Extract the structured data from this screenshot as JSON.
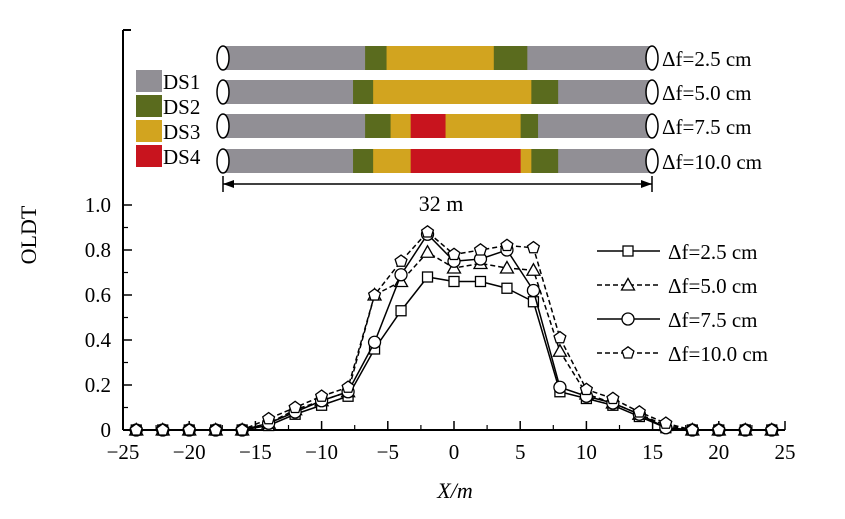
{
  "chart_data": {
    "type": "line",
    "xlabel": "X/m",
    "ylabel": "OLDT",
    "xlim": [
      -25,
      25
    ],
    "ylim": [
      0,
      1.0
    ],
    "xticks": [
      -25,
      -20,
      -15,
      -10,
      -5,
      0,
      5,
      10,
      15,
      20,
      25
    ],
    "yticks": [
      0,
      0.2,
      0.4,
      0.6,
      0.8,
      1.0
    ],
    "xtick_labels": [
      "−25",
      "−20",
      "−15",
      "−10",
      "−5",
      "0",
      "5",
      "10",
      "15",
      "20",
      "25"
    ],
    "ytick_labels": [
      "0",
      "0.2",
      "0.4",
      "0.6",
      "0.8",
      "1.0"
    ],
    "grid": false,
    "legend_position": "right",
    "x": [
      -24,
      -22,
      -20,
      -18,
      -16,
      -14,
      -12,
      -10,
      -8,
      -6,
      -4,
      -2,
      0,
      2,
      4,
      6,
      8,
      10,
      12,
      14,
      16,
      18,
      20,
      22,
      24
    ],
    "series": [
      {
        "name": "Δf=2.5 cm",
        "marker": "square",
        "dash": "solid",
        "values": [
          0.0,
          0.0,
          0.0,
          0.0,
          0.0,
          0.02,
          0.07,
          0.11,
          0.15,
          0.36,
          0.53,
          0.68,
          0.66,
          0.66,
          0.63,
          0.57,
          0.17,
          0.14,
          0.11,
          0.06,
          0.01,
          0.0,
          0.0,
          0.0,
          0.0
        ]
      },
      {
        "name": "Δf=5.0 cm",
        "marker": "triangle",
        "dash": "dashed",
        "values": [
          0.0,
          0.0,
          0.0,
          0.0,
          0.0,
          0.03,
          0.09,
          0.13,
          0.17,
          0.6,
          0.66,
          0.79,
          0.72,
          0.74,
          0.72,
          0.71,
          0.35,
          0.16,
          0.12,
          0.07,
          0.02,
          0.0,
          0.0,
          0.0,
          0.0
        ]
      },
      {
        "name": "Δf=7.5 cm",
        "marker": "circle",
        "dash": "solid",
        "values": [
          0.0,
          0.0,
          0.0,
          0.0,
          0.0,
          0.03,
          0.08,
          0.13,
          0.17,
          0.39,
          0.69,
          0.87,
          0.75,
          0.76,
          0.8,
          0.62,
          0.19,
          0.15,
          0.12,
          0.07,
          0.01,
          0.0,
          0.0,
          0.0,
          0.0
        ]
      },
      {
        "name": "Δf=10.0 cm",
        "marker": "pentagon",
        "dash": "dashed",
        "values": [
          0.0,
          0.0,
          0.0,
          0.0,
          0.0,
          0.05,
          0.1,
          0.15,
          0.19,
          0.6,
          0.75,
          0.88,
          0.78,
          0.8,
          0.82,
          0.81,
          0.41,
          0.18,
          0.14,
          0.08,
          0.03,
          0.0,
          0.0,
          0.0,
          0.0
        ]
      }
    ]
  },
  "damage_diagram": {
    "length_label": "32 m",
    "legend": [
      {
        "label": "DS1",
        "color": "#918f95"
      },
      {
        "label": "DS2",
        "color": "#5a6b1e"
      },
      {
        "label": "DS3",
        "color": "#d2a41f"
      },
      {
        "label": "DS4",
        "color": "#c8141e"
      }
    ],
    "bars": [
      {
        "label": "Δf=2.5 cm",
        "segments": [
          [
            "DS1",
            -16.0,
            -5.4
          ],
          [
            "DS2",
            -5.4,
            -3.8
          ],
          [
            "DS3",
            -3.8,
            4.2
          ],
          [
            "DS2",
            4.2,
            6.7
          ],
          [
            "DS1",
            6.7,
            16.0
          ]
        ]
      },
      {
        "label": "Δf=5.0 cm",
        "segments": [
          [
            "DS1",
            -16.0,
            -6.3
          ],
          [
            "DS2",
            -6.3,
            -4.8
          ],
          [
            "DS3",
            -4.8,
            7.0
          ],
          [
            "DS2",
            7.0,
            9.0
          ],
          [
            "DS1",
            9.0,
            16.0
          ]
        ]
      },
      {
        "label": "Δf=7.5 cm",
        "segments": [
          [
            "DS1",
            -16.0,
            -5.4
          ],
          [
            "DS2",
            -5.4,
            -3.5
          ],
          [
            "DS3",
            -3.5,
            -2.0
          ],
          [
            "DS4",
            -2.0,
            0.6
          ],
          [
            "DS3",
            0.6,
            6.2
          ],
          [
            "DS2",
            6.2,
            7.5
          ],
          [
            "DS1",
            7.5,
            16.0
          ]
        ]
      },
      {
        "label": "Δf=10.0 cm",
        "segments": [
          [
            "DS1",
            -16.0,
            -6.3
          ],
          [
            "DS2",
            -6.3,
            -4.8
          ],
          [
            "DS3",
            -4.8,
            -2.0
          ],
          [
            "DS4",
            -2.0,
            6.2
          ],
          [
            "DS3",
            6.2,
            7.0
          ],
          [
            "DS2",
            7.0,
            9.0
          ],
          [
            "DS1",
            9.0,
            16.0
          ]
        ]
      }
    ]
  }
}
